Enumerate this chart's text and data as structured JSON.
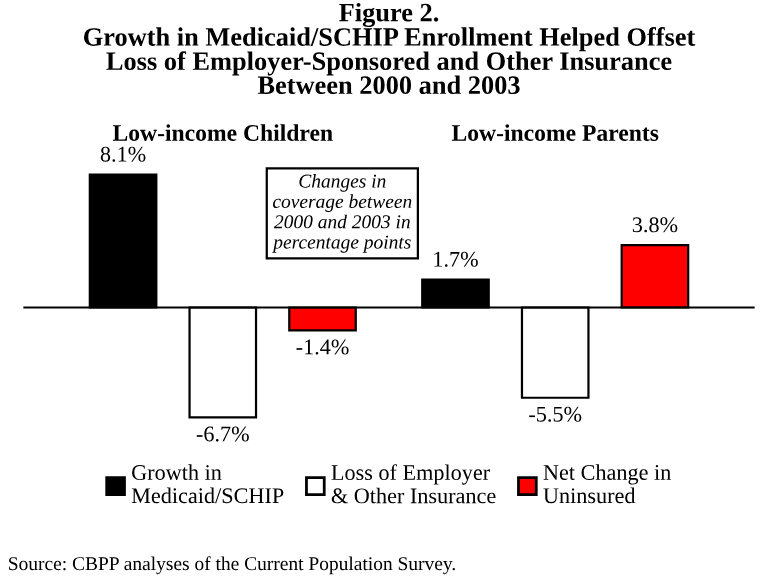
{
  "chart_data": {
    "type": "bar",
    "title": "Figure 2.\nGrowth in Medicaid/SCHIP Enrollment Helped Offset\nLoss of Employer-Sponsored and Other Insurance\nBetween 2000 and 2003",
    "categories": [
      "Low-income Children",
      "Low-income Parents"
    ],
    "series": [
      {
        "name": "Growth in\nMedicaid/SCHIP",
        "color": "#000000",
        "values": [
          8.1,
          1.7
        ],
        "value_labels": [
          "8.1%",
          "1.7%"
        ]
      },
      {
        "name": "Loss of Employer\n& Other Insurance",
        "color": "#ffffff",
        "values": [
          -6.7,
          -5.5
        ],
        "value_labels": [
          "-6.7%",
          "-5.5%"
        ]
      },
      {
        "name": "Net Change in\nUninsured",
        "color": "#ff0000",
        "values": [
          -1.4,
          3.8
        ],
        "value_labels": [
          "-1.4%",
          "3.8%"
        ]
      }
    ],
    "annotations": [
      "Changes in\ncoverage between\n2000 and 2003 in\npercentage points",
      "Source: CBPP analyses of the Current Population Survey."
    ],
    "legend": "bottom"
  }
}
